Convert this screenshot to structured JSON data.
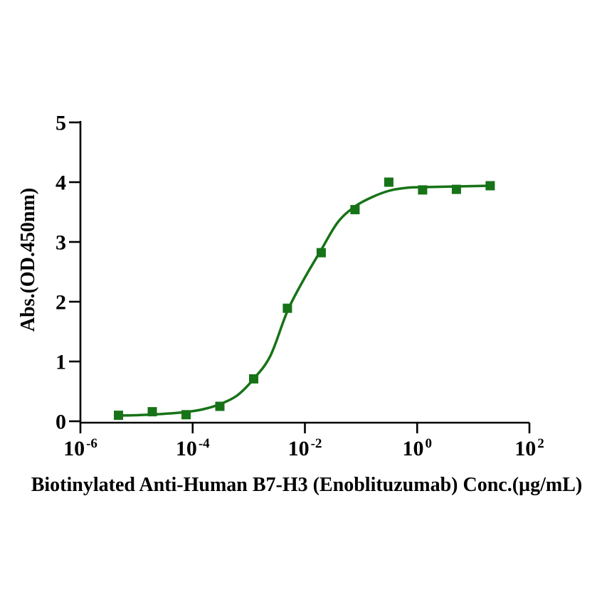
{
  "chart_data": {
    "type": "scatter",
    "subtype": "sigmoidal-dose-response-elisa",
    "title": "",
    "xlabel": "Biotinylated Anti-Human B7-H3 (Enoblituzumab) Conc.(µg/mL)",
    "ylabel": "Abs.(OD.450nm)",
    "x_scale": "log10",
    "x_tick_base": 10,
    "x_tick_exponents": [
      -6,
      -4,
      -2,
      0,
      2
    ],
    "xlim_exponents": [
      -6,
      2
    ],
    "y_ticks": [
      0,
      1,
      2,
      3,
      4,
      5
    ],
    "ylim": [
      0,
      5
    ],
    "grid": false,
    "legend": null,
    "axis_color": "#000000",
    "series": [
      {
        "name": "Biotinylated Anti-Human B7-H3 (Enoblituzumab)",
        "marker": "square",
        "marker_size_px": 13,
        "color": "#177317",
        "points": [
          {
            "conc_ug_ml": 4.768e-06,
            "abs": 0.1
          },
          {
            "conc_ug_ml": 1.907e-05,
            "abs": 0.16
          },
          {
            "conc_ug_ml": 7.629e-05,
            "abs": 0.11
          },
          {
            "conc_ug_ml": 0.0003052,
            "abs": 0.25
          },
          {
            "conc_ug_ml": 0.001221,
            "abs": 0.71
          },
          {
            "conc_ug_ml": 0.004883,
            "abs": 1.89
          },
          {
            "conc_ug_ml": 0.01953,
            "abs": 2.82
          },
          {
            "conc_ug_ml": 0.07813,
            "abs": 3.54
          },
          {
            "conc_ug_ml": 0.3125,
            "abs": 4.0
          },
          {
            "conc_ug_ml": 1.25,
            "abs": 3.87
          },
          {
            "conc_ug_ml": 5.0,
            "abs": 3.88
          },
          {
            "conc_ug_ml": 20.0,
            "abs": 3.94
          }
        ]
      }
    ],
    "fit_curve": {
      "model": "4PL sigmoidal fit",
      "color": "#177317",
      "stroke_width_px": 3.5,
      "samples_log10x_abs": [
        [
          -5.328,
          0.095
        ],
        [
          -5.024,
          0.101
        ],
        [
          -4.72,
          0.113
        ],
        [
          -4.415,
          0.131
        ],
        [
          -4.111,
          0.155
        ],
        [
          -3.807,
          0.202
        ],
        [
          -3.515,
          0.286
        ],
        [
          -3.211,
          0.429
        ],
        [
          -2.919,
          0.702
        ],
        [
          -2.615,
          1.095
        ],
        [
          -2.311,
          1.845
        ],
        [
          -2.007,
          2.393
        ],
        [
          -1.702,
          2.881
        ],
        [
          -1.411,
          3.333
        ],
        [
          -1.106,
          3.595
        ],
        [
          -0.802,
          3.75
        ],
        [
          -0.498,
          3.857
        ],
        [
          -0.194,
          3.905
        ],
        [
          0.098,
          3.917
        ],
        [
          0.707,
          3.929
        ],
        [
          1.315,
          3.94
        ]
      ]
    }
  }
}
